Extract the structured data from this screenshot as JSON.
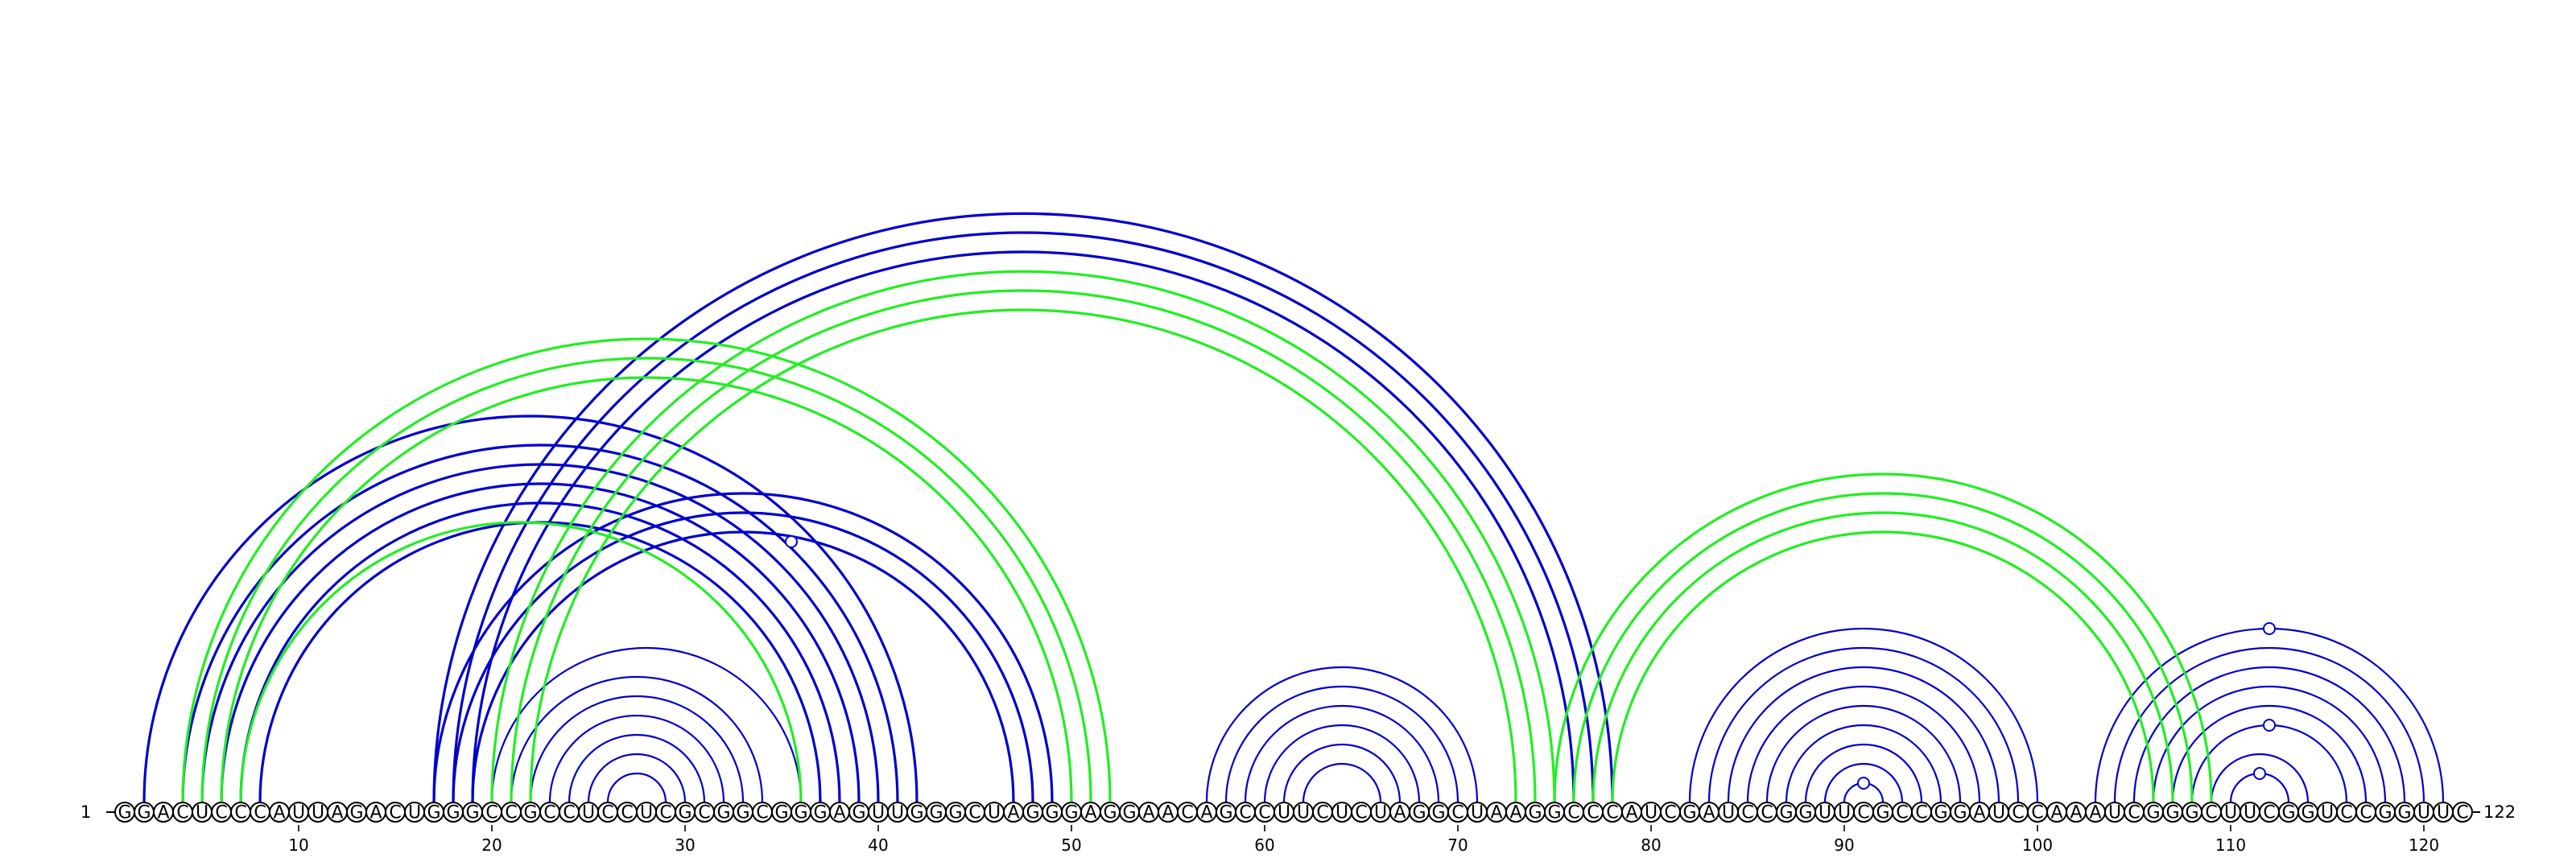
{
  "chart_data": {
    "type": "arc-diagram",
    "sequence": "GGACUCCCAUUAGACUGGGCCGCCUCCUCGCGGCGGGAGUUGGGCUAGGGAGGAACAGCCUUCUCUAGGCUAAGGCCCAUCGAUCCGGUUCGCCGGAUCCAAAUCGGGCUUCGGUCCGGUUC",
    "length": 122,
    "start_label": "1",
    "end_label": "122",
    "ticks": [
      {
        "pos": 10,
        "label": "10"
      },
      {
        "pos": 20,
        "label": "20"
      },
      {
        "pos": 30,
        "label": "30"
      },
      {
        "pos": 40,
        "label": "40"
      },
      {
        "pos": 50,
        "label": "50"
      },
      {
        "pos": 60,
        "label": "60"
      },
      {
        "pos": 70,
        "label": "70"
      },
      {
        "pos": 80,
        "label": "80"
      },
      {
        "pos": 90,
        "label": "90"
      },
      {
        "pos": 100,
        "label": "100"
      },
      {
        "pos": 110,
        "label": "110"
      },
      {
        "pos": 120,
        "label": "120"
      }
    ],
    "colors": {
      "blue": "#0000cc",
      "green": "#22ee22"
    },
    "pairs_blue": [
      [
        2,
        42
      ],
      [
        4,
        41
      ],
      [
        5,
        40
      ],
      [
        6,
        39
      ],
      [
        7,
        38
      ],
      [
        8,
        37
      ],
      [
        17,
        49
      ],
      [
        18,
        48
      ],
      [
        19,
        47
      ],
      [
        20,
        36
      ],
      [
        21,
        34
      ],
      [
        22,
        33
      ],
      [
        23,
        32
      ],
      [
        24,
        31
      ],
      [
        25,
        30
      ],
      [
        26,
        29
      ],
      [
        17,
        78
      ],
      [
        18,
        77
      ],
      [
        19,
        76
      ],
      [
        57,
        71
      ],
      [
        58,
        70
      ],
      [
        59,
        69
      ],
      [
        60,
        68
      ],
      [
        61,
        67
      ],
      [
        62,
        66
      ],
      [
        82,
        100
      ],
      [
        83,
        99
      ],
      [
        84,
        98
      ],
      [
        85,
        97
      ],
      [
        86,
        96
      ],
      [
        87,
        95
      ],
      [
        88,
        94
      ],
      [
        89,
        93
      ],
      [
        90,
        92
      ],
      [
        103,
        121
      ],
      [
        104,
        120
      ],
      [
        105,
        119
      ],
      [
        106,
        118
      ],
      [
        107,
        117
      ],
      [
        108,
        116
      ],
      [
        109,
        114
      ],
      [
        110,
        113
      ]
    ],
    "pairs_green": [
      [
        4,
        52
      ],
      [
        5,
        51
      ],
      [
        6,
        50
      ],
      [
        7,
        36
      ],
      [
        20,
        75
      ],
      [
        21,
        74
      ],
      [
        22,
        73
      ],
      [
        75,
        109
      ],
      [
        76,
        108
      ],
      [
        77,
        107
      ],
      [
        78,
        106
      ]
    ],
    "markers": [
      {
        "i": 22,
        "j": 49
      },
      {
        "i": 90,
        "j": 92
      },
      {
        "i": 103,
        "j": 121
      },
      {
        "i": 108,
        "j": 116
      },
      {
        "i": 110,
        "j": 113
      }
    ]
  }
}
